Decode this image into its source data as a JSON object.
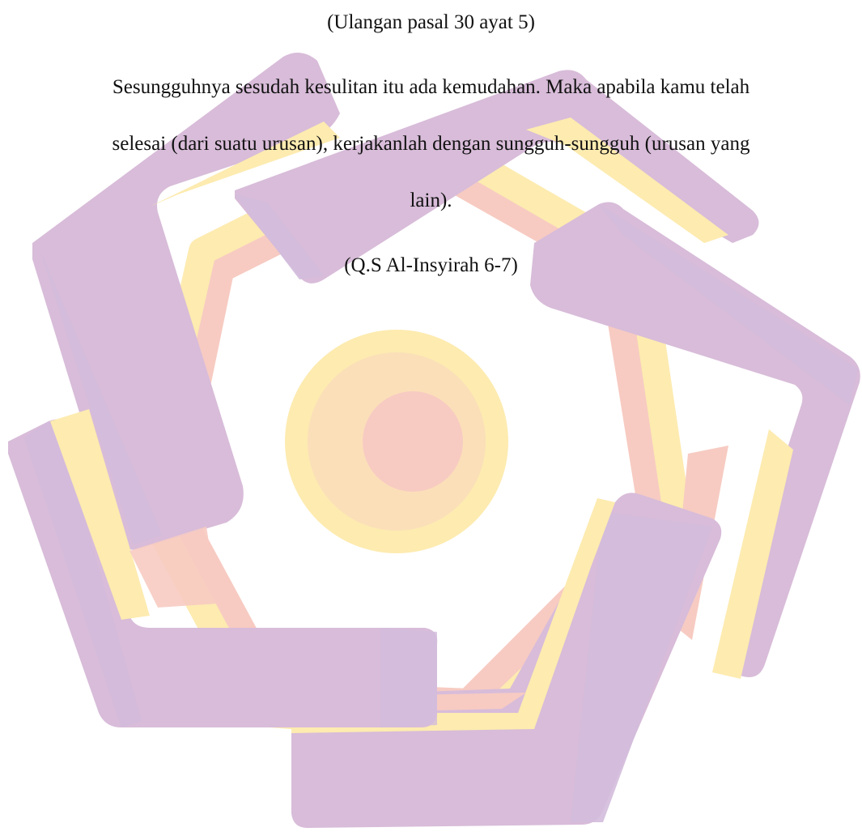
{
  "document": {
    "reference_top": "(Ulangan pasal 30 ayat 5)",
    "quote_lines": [
      "Sesungguhnya sesudah kesulitan itu ada kemudahan. Maka apabila kamu telah",
      "selesai (dari suatu urusan), kerjakanlah dengan sungguh-sungguh (urusan yang",
      "lain)."
    ],
    "reference_bottom": "(Q.S Al-Insyirah 6-7)"
  },
  "watermark": {
    "type": "logo",
    "icon": "pentagon-star-logo",
    "colors": {
      "purple": "#d8bcd9",
      "purple_dark": "#d3bbdc",
      "yellow": "#fdebb0",
      "peach": "#f9d7c4",
      "pink": "#f7cbc2"
    }
  }
}
